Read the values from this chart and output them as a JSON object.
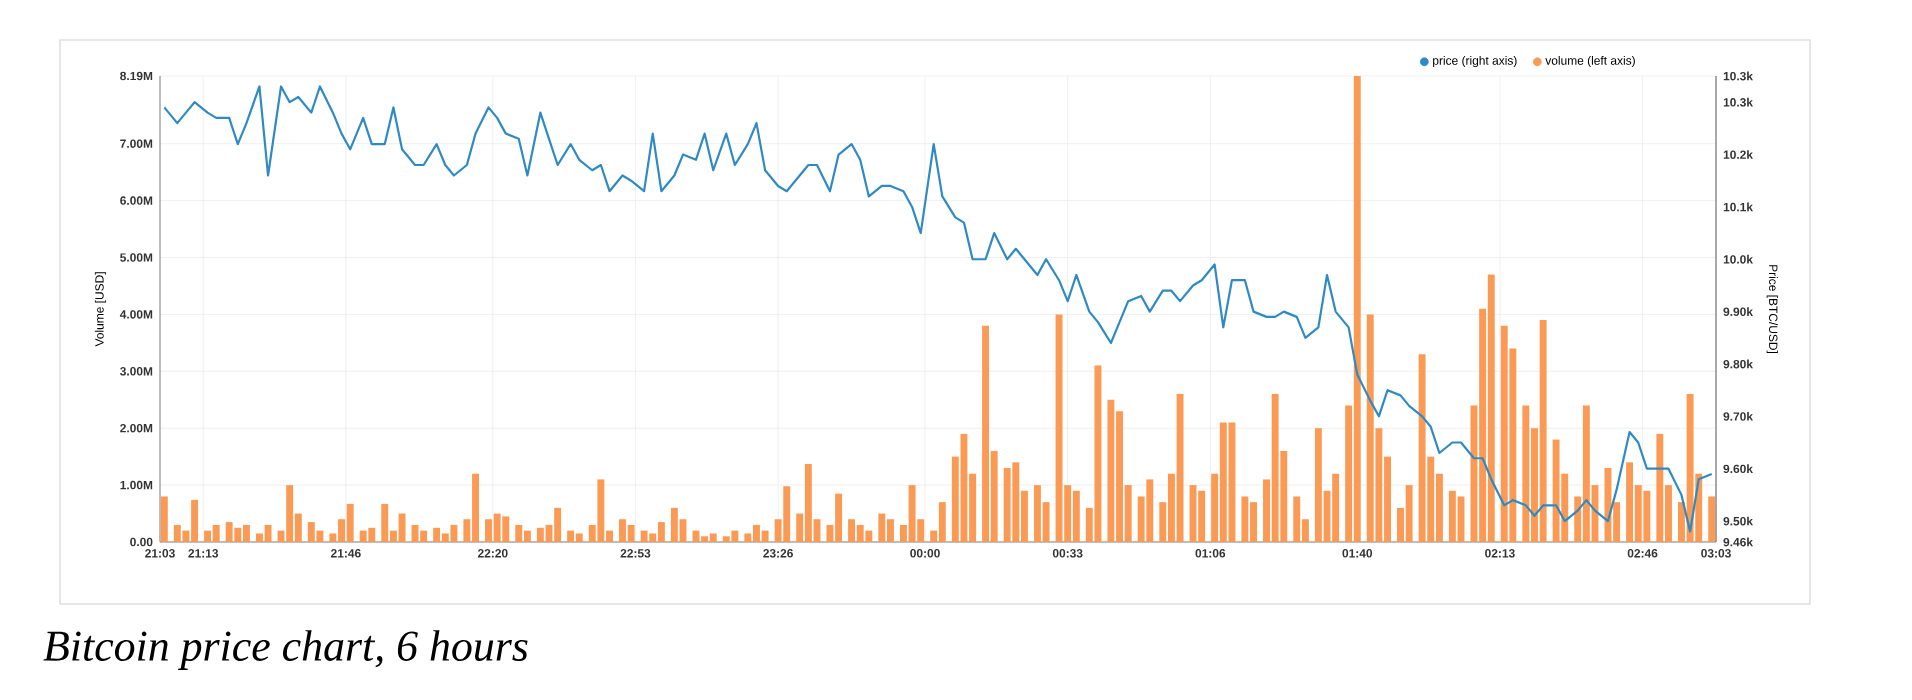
{
  "chart_data": {
    "type": "bar",
    "x": [
      "2000-01-01T21:04",
      "2000-01-01T21:07",
      "2000-01-01T21:09",
      "2000-01-01T21:11",
      "2000-01-01T21:14",
      "2000-01-01T21:16",
      "2000-01-01T21:19",
      "2000-01-01T21:21",
      "2000-01-01T21:23",
      "2000-01-01T21:26",
      "2000-01-01T21:28",
      "2000-01-01T21:31",
      "2000-01-01T21:33",
      "2000-01-01T21:35",
      "2000-01-01T21:38",
      "2000-01-01T21:40",
      "2000-01-01T21:43",
      "2000-01-01T21:45",
      "2000-01-01T21:47",
      "2000-01-01T21:50",
      "2000-01-01T21:52",
      "2000-01-01T21:55",
      "2000-01-01T21:57",
      "2000-01-01T21:59",
      "2000-01-01T22:02",
      "2000-01-01T22:04",
      "2000-01-01T22:07",
      "2000-01-01T22:09",
      "2000-01-01T22:11",
      "2000-01-01T22:14",
      "2000-01-01T22:16",
      "2000-01-01T22:19",
      "2000-01-01T22:21",
      "2000-01-01T22:23",
      "2000-01-01T22:26",
      "2000-01-01T22:28",
      "2000-01-01T22:31",
      "2000-01-01T22:33",
      "2000-01-01T22:35",
      "2000-01-01T22:38",
      "2000-01-01T22:40",
      "2000-01-01T22:43",
      "2000-01-01T22:45",
      "2000-01-01T22:47",
      "2000-01-01T22:50",
      "2000-01-01T22:52",
      "2000-01-01T22:55",
      "2000-01-01T22:57",
      "2000-01-01T22:59",
      "2000-01-01T23:02",
      "2000-01-01T23:04",
      "2000-01-01T23:07",
      "2000-01-01T23:09",
      "2000-01-01T23:11",
      "2000-01-01T23:14",
      "2000-01-01T23:16",
      "2000-01-01T23:19",
      "2000-01-01T23:21",
      "2000-01-01T23:23",
      "2000-01-01T23:26",
      "2000-01-01T23:28",
      "2000-01-01T23:31",
      "2000-01-01T23:33",
      "2000-01-01T23:35",
      "2000-01-01T23:38",
      "2000-01-01T23:40",
      "2000-01-01T23:43",
      "2000-01-01T23:45",
      "2000-01-01T23:47",
      "2000-01-01T23:50",
      "2000-01-01T23:52",
      "2000-01-01T23:55",
      "2000-01-01T23:57",
      "2000-01-01T23:59",
      "2000-01-02T00:02",
      "2000-01-02T00:04",
      "2000-01-02T00:07",
      "2000-01-02T00:09",
      "2000-01-02T00:11",
      "2000-01-02T00:14",
      "2000-01-02T00:16",
      "2000-01-02T00:19",
      "2000-01-02T00:21",
      "2000-01-02T00:23",
      "2000-01-02T00:26",
      "2000-01-02T00:28",
      "2000-01-02T00:31",
      "2000-01-02T00:33",
      "2000-01-02T00:35",
      "2000-01-02T00:38",
      "2000-01-02T00:40",
      "2000-01-02T00:43",
      "2000-01-02T00:45",
      "2000-01-02T00:47",
      "2000-01-02T00:50",
      "2000-01-02T00:52",
      "2000-01-02T00:55",
      "2000-01-02T00:57",
      "2000-01-02T00:59",
      "2000-01-02T01:02",
      "2000-01-02T01:04",
      "2000-01-02T01:07",
      "2000-01-02T01:09",
      "2000-01-02T01:11",
      "2000-01-02T01:14",
      "2000-01-02T01:16",
      "2000-01-02T01:19",
      "2000-01-02T01:21",
      "2000-01-02T01:23",
      "2000-01-02T01:26",
      "2000-01-02T01:28",
      "2000-01-02T01:31",
      "2000-01-02T01:33",
      "2000-01-02T01:35",
      "2000-01-02T01:38",
      "2000-01-02T01:40",
      "2000-01-02T01:43",
      "2000-01-02T01:45",
      "2000-01-02T01:47",
      "2000-01-02T01:50",
      "2000-01-02T01:52",
      "2000-01-02T01:55",
      "2000-01-02T01:57",
      "2000-01-02T01:59",
      "2000-01-02T02:02",
      "2000-01-02T02:04",
      "2000-01-02T02:07",
      "2000-01-02T02:09",
      "2000-01-02T02:11",
      "2000-01-02T02:14",
      "2000-01-02T02:16",
      "2000-01-02T02:19",
      "2000-01-02T02:21",
      "2000-01-02T02:23",
      "2000-01-02T02:26",
      "2000-01-02T02:28",
      "2000-01-02T02:31",
      "2000-01-02T02:33",
      "2000-01-02T02:35",
      "2000-01-02T02:38",
      "2000-01-02T02:40",
      "2000-01-02T02:43",
      "2000-01-02T02:45",
      "2000-01-02T02:47",
      "2000-01-02T02:50",
      "2000-01-02T02:52",
      "2000-01-02T02:55",
      "2000-01-02T02:57",
      "2000-01-02T02:59",
      "2000-01-02T03:02"
    ],
    "series": [
      {
        "name": "price (right axis)",
        "type": "line",
        "axis": "y2",
        "color": "#2f8ac4",
        "values": [
          10.29,
          10.26,
          10.28,
          10.3,
          10.28,
          10.27,
          10.27,
          10.22,
          10.26,
          10.33,
          10.16,
          10.33,
          10.3,
          10.31,
          10.28,
          10.33,
          10.28,
          10.24,
          10.21,
          10.27,
          10.22,
          10.22,
          10.29,
          10.21,
          10.18,
          10.18,
          10.22,
          10.18,
          10.16,
          10.18,
          10.24,
          10.29,
          10.27,
          10.24,
          10.23,
          10.16,
          10.28,
          10.23,
          10.18,
          10.22,
          10.19,
          10.17,
          10.18,
          10.13,
          10.16,
          10.15,
          10.13,
          10.24,
          10.13,
          10.16,
          10.2,
          10.19,
          10.24,
          10.17,
          10.24,
          10.18,
          10.22,
          10.26,
          10.17,
          10.14,
          10.13,
          10.16,
          10.18,
          10.18,
          10.13,
          10.2,
          10.22,
          10.19,
          10.12,
          10.14,
          10.14,
          10.13,
          10.1,
          10.05,
          10.22,
          10.12,
          10.08,
          10.07,
          10.0,
          10.0,
          10.05,
          10.0,
          10.02,
          10.0,
          9.97,
          10.0,
          9.96,
          9.92,
          9.97,
          9.9,
          9.88,
          9.84,
          9.88,
          9.92,
          9.93,
          9.9,
          9.94,
          9.94,
          9.92,
          9.95,
          9.96,
          9.99,
          9.87,
          9.96,
          9.96,
          9.9,
          9.89,
          9.89,
          9.9,
          9.89,
          9.85,
          9.87,
          9.97,
          9.9,
          9.87,
          9.78,
          9.73,
          9.7,
          9.75,
          9.74,
          9.72,
          9.7,
          9.68,
          9.63,
          9.65,
          9.65,
          9.62,
          9.62,
          9.58,
          9.53,
          9.54,
          9.53,
          9.51,
          9.53,
          9.53,
          9.5,
          9.52,
          9.54,
          9.52,
          9.5,
          9.56,
          9.67,
          9.65,
          9.6,
          9.6,
          9.6,
          9.55,
          9.48,
          9.58,
          9.59
        ]
      },
      {
        "name": "volume (left axis)",
        "color": "#fa9a55",
        "values": [
          0.8,
          0.3,
          0.2,
          0.74,
          0.2,
          0.3,
          0.35,
          0.25,
          0.3,
          0.15,
          0.3,
          0.2,
          1.0,
          0.5,
          0.35,
          0.2,
          0.15,
          0.4,
          0.67,
          0.2,
          0.25,
          0.67,
          0.2,
          0.5,
          0.3,
          0.2,
          0.25,
          0.15,
          0.3,
          0.4,
          1.2,
          0.4,
          0.5,
          0.45,
          0.3,
          0.2,
          0.25,
          0.3,
          0.6,
          0.2,
          0.15,
          0.3,
          1.1,
          0.2,
          0.4,
          0.3,
          0.2,
          0.15,
          0.35,
          0.6,
          0.4,
          0.2,
          0.1,
          0.15,
          0.1,
          0.2,
          0.15,
          0.3,
          0.2,
          0.4,
          0.98,
          0.5,
          1.37,
          0.4,
          0.3,
          0.85,
          0.4,
          0.3,
          0.2,
          0.5,
          0.4,
          0.3,
          1.0,
          0.4,
          0.2,
          0.7,
          1.5,
          1.9,
          1.2,
          3.8,
          1.6,
          1.3,
          1.4,
          0.9,
          1.0,
          0.7,
          4.0,
          1.0,
          0.9,
          0.6,
          3.1,
          2.5,
          2.3,
          1.0,
          0.8,
          1.1,
          0.7,
          1.2,
          2.6,
          1.0,
          0.9,
          1.2,
          2.1,
          2.1,
          0.8,
          0.7,
          1.1,
          2.6,
          1.6,
          0.8,
          0.4,
          2.0,
          0.9,
          1.2,
          2.4,
          8.19,
          4.0,
          2.0,
          1.5,
          0.6,
          1.0,
          3.3,
          1.5,
          1.2,
          0.9,
          0.8,
          2.4,
          4.1,
          4.7,
          3.8,
          3.4,
          2.4,
          2.0,
          3.9,
          1.8,
          1.2,
          0.8,
          2.4,
          1.0,
          1.3,
          0.7,
          1.4,
          1.0,
          0.9,
          1.9,
          1.0,
          0.7,
          2.6,
          1.2,
          0.8
        ]
      }
    ],
    "xlim": [
      "2000-01-01T21:03",
      "2000-01-02T03:03"
    ],
    "xticks": [
      {
        "value": "2000-01-01T21:03",
        "label": "21:03"
      },
      {
        "value": "2000-01-01T21:13",
        "label": "21:13"
      },
      {
        "value": "2000-01-01T21:46",
        "label": "21:46"
      },
      {
        "value": "2000-01-01T22:20",
        "label": "22:20"
      },
      {
        "value": "2000-01-01T22:53",
        "label": "22:53"
      },
      {
        "value": "2000-01-01T23:26",
        "label": "23:26"
      },
      {
        "value": "2000-01-02T00:00",
        "label": "00:00"
      },
      {
        "value": "2000-01-02T00:33",
        "label": "00:33"
      },
      {
        "value": "2000-01-02T01:06",
        "label": "01:06"
      },
      {
        "value": "2000-01-02T01:40",
        "label": "01:40"
      },
      {
        "value": "2000-01-02T02:13",
        "label": "02:13"
      },
      {
        "value": "2000-01-02T02:46",
        "label": "02:46"
      },
      {
        "value": "2000-01-02T03:03",
        "label": "03:03"
      }
    ],
    "ylim": [
      0,
      8.19
    ],
    "yticks": [
      {
        "value": 0,
        "label": "0.00"
      },
      {
        "value": 1,
        "label": "1.00M"
      },
      {
        "value": 2,
        "label": "2.00M"
      },
      {
        "value": 3,
        "label": "3.00M"
      },
      {
        "value": 4,
        "label": "4.00M"
      },
      {
        "value": 5,
        "label": "5.00M"
      },
      {
        "value": 6,
        "label": "6.00M"
      },
      {
        "value": 7,
        "label": "7.00M"
      },
      {
        "value": 8.19,
        "label": "8.19M"
      }
    ],
    "y2lim": [
      9.46,
      10.35
    ],
    "y2ticks": [
      {
        "value": 9.46,
        "label": "9.46k"
      },
      {
        "value": 9.5,
        "label": "9.50k"
      },
      {
        "value": 9.6,
        "label": "9.60k"
      },
      {
        "value": 9.7,
        "label": "9.70k"
      },
      {
        "value": 9.8,
        "label": "9.80k"
      },
      {
        "value": 9.9,
        "label": "9.90k"
      },
      {
        "value": 10.0,
        "label": "10.0k"
      },
      {
        "value": 10.1,
        "label": "10.1k"
      },
      {
        "value": 10.2,
        "label": "10.2k"
      },
      {
        "value": 10.3,
        "label": "10.3k"
      },
      {
        "value": 10.35,
        "label": "10.3k"
      }
    ],
    "ylabel": "Volume [USD]",
    "y2label": "Price [BTC/USD]",
    "annotations": [
      "Bitcoin price chart, 6 hours"
    ],
    "grid": true,
    "legend": "top right",
    "marker": "none"
  }
}
